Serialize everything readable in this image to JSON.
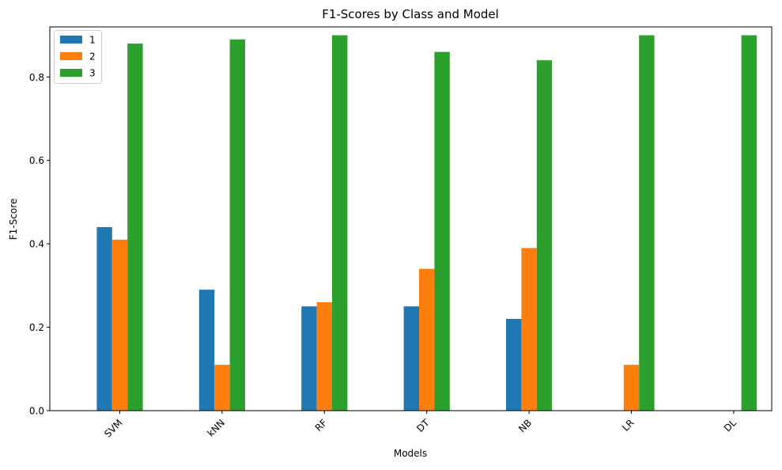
{
  "chart_data": {
    "type": "bar",
    "title": "F1-Scores by Class and Model",
    "xlabel": "Models",
    "ylabel": "F1-Score",
    "categories": [
      "SVM",
      "kNN",
      "RF",
      "DT",
      "NB",
      "LR",
      "DL"
    ],
    "ylim": [
      0,
      0.92
    ],
    "yticks": [
      0.0,
      0.2,
      0.4,
      0.6,
      0.8
    ],
    "ytick_labels": [
      "0.0",
      "0.2",
      "0.4",
      "0.6",
      "0.8"
    ],
    "grid": false,
    "legend": "top-left",
    "series": [
      {
        "name": "1",
        "color": "#1f77b4",
        "values": [
          0.44,
          0.29,
          0.25,
          0.25,
          0.22,
          0.0,
          0.0
        ]
      },
      {
        "name": "2",
        "color": "#ff7f0e",
        "values": [
          0.41,
          0.11,
          0.26,
          0.34,
          0.39,
          0.11,
          0.0
        ]
      },
      {
        "name": "3",
        "color": "#2ca02c",
        "values": [
          0.88,
          0.89,
          0.9,
          0.86,
          0.84,
          0.9,
          0.9
        ]
      }
    ]
  }
}
